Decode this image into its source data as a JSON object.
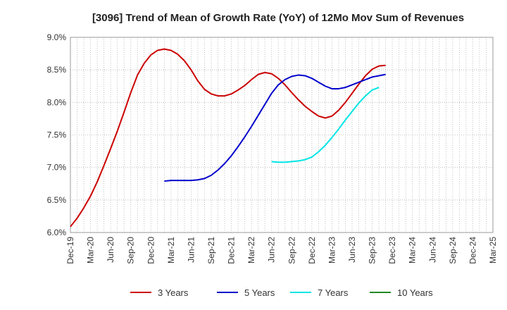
{
  "chart_data": {
    "type": "line",
    "title": "[3096]  Trend of Mean of Growth Rate (YoY) of 12Mo Mov Sum of Revenues",
    "xlabel": "",
    "ylabel": "",
    "ylim": [
      6.0,
      9.0
    ],
    "y_ticks": [
      {
        "value": 6.0,
        "label": "6.0%"
      },
      {
        "value": 6.5,
        "label": "6.5%"
      },
      {
        "value": 7.0,
        "label": "7.0%"
      },
      {
        "value": 7.5,
        "label": "7.5%"
      },
      {
        "value": 8.0,
        "label": "8.0%"
      },
      {
        "value": 8.5,
        "label": "8.5%"
      },
      {
        "value": 9.0,
        "label": "9.0%"
      }
    ],
    "x_ticks": [
      "Dec-19",
      "Mar-20",
      "Jun-20",
      "Sep-20",
      "Dec-20",
      "Mar-21",
      "Jun-21",
      "Sep-21",
      "Dec-21",
      "Mar-22",
      "Jun-22",
      "Sep-22",
      "Dec-22",
      "Mar-23",
      "Jun-23",
      "Sep-23",
      "Dec-23",
      "Mar-24",
      "Jun-24",
      "Sep-24",
      "Dec-24",
      "Mar-25"
    ],
    "grid": true,
    "legend_position": "bottom",
    "series": [
      {
        "name": "3 Years",
        "color": "#cc0000",
        "points": [
          [
            0,
            6.09
          ],
          [
            1,
            6.22
          ],
          [
            2,
            6.38
          ],
          [
            3,
            6.56
          ],
          [
            4,
            6.78
          ],
          [
            5,
            7.03
          ],
          [
            6,
            7.29
          ],
          [
            7,
            7.56
          ],
          [
            8,
            7.85
          ],
          [
            9,
            8.15
          ],
          [
            10,
            8.42
          ],
          [
            11,
            8.6
          ],
          [
            12,
            8.73
          ],
          [
            13,
            8.8
          ],
          [
            14,
            8.82
          ],
          [
            15,
            8.8
          ],
          [
            16,
            8.74
          ],
          [
            17,
            8.64
          ],
          [
            18,
            8.5
          ],
          [
            19,
            8.33
          ],
          [
            20,
            8.2
          ],
          [
            21,
            8.13
          ],
          [
            22,
            8.1
          ],
          [
            23,
            8.1
          ],
          [
            24,
            8.13
          ],
          [
            25,
            8.19
          ],
          [
            26,
            8.26
          ],
          [
            27,
            8.35
          ],
          [
            28,
            8.43
          ],
          [
            29,
            8.46
          ],
          [
            30,
            8.44
          ],
          [
            31,
            8.37
          ],
          [
            32,
            8.27
          ],
          [
            33,
            8.15
          ],
          [
            34,
            8.04
          ],
          [
            35,
            7.94
          ],
          [
            36,
            7.86
          ],
          [
            37,
            7.79
          ],
          [
            38,
            7.76
          ],
          [
            39,
            7.79
          ],
          [
            40,
            7.88
          ],
          [
            41,
            8.0
          ],
          [
            42,
            8.14
          ],
          [
            43,
            8.28
          ],
          [
            44,
            8.41
          ],
          [
            45,
            8.51
          ],
          [
            46,
            8.56
          ],
          [
            47,
            8.57
          ]
        ]
      },
      {
        "name": "5 Years",
        "color": "#0000cc",
        "points": [
          [
            14,
            6.79
          ],
          [
            15,
            6.8
          ],
          [
            16,
            6.8
          ],
          [
            17,
            6.8
          ],
          [
            18,
            6.8
          ],
          [
            19,
            6.81
          ],
          [
            20,
            6.83
          ],
          [
            21,
            6.88
          ],
          [
            22,
            6.96
          ],
          [
            23,
            7.06
          ],
          [
            24,
            7.18
          ],
          [
            25,
            7.32
          ],
          [
            26,
            7.47
          ],
          [
            27,
            7.63
          ],
          [
            28,
            7.8
          ],
          [
            29,
            7.97
          ],
          [
            30,
            8.14
          ],
          [
            31,
            8.27
          ],
          [
            32,
            8.35
          ],
          [
            33,
            8.4
          ],
          [
            34,
            8.42
          ],
          [
            35,
            8.41
          ],
          [
            36,
            8.37
          ],
          [
            37,
            8.31
          ],
          [
            38,
            8.25
          ],
          [
            39,
            8.21
          ],
          [
            40,
            8.21
          ],
          [
            41,
            8.23
          ],
          [
            42,
            8.27
          ],
          [
            43,
            8.31
          ],
          [
            44,
            8.35
          ],
          [
            45,
            8.39
          ],
          [
            46,
            8.41
          ],
          [
            47,
            8.43
          ]
        ]
      },
      {
        "name": "7 Years",
        "color": "#00e5e5",
        "points": [
          [
            30,
            7.09
          ],
          [
            31,
            7.08
          ],
          [
            32,
            7.08
          ],
          [
            33,
            7.09
          ],
          [
            34,
            7.1
          ],
          [
            35,
            7.12
          ],
          [
            36,
            7.16
          ],
          [
            37,
            7.24
          ],
          [
            38,
            7.34
          ],
          [
            39,
            7.46
          ],
          [
            40,
            7.59
          ],
          [
            41,
            7.73
          ],
          [
            42,
            7.86
          ],
          [
            43,
            7.99
          ],
          [
            44,
            8.1
          ],
          [
            45,
            8.19
          ],
          [
            46,
            8.23
          ]
        ]
      },
      {
        "name": "10 Years",
        "color": "#228822",
        "points": []
      }
    ]
  }
}
